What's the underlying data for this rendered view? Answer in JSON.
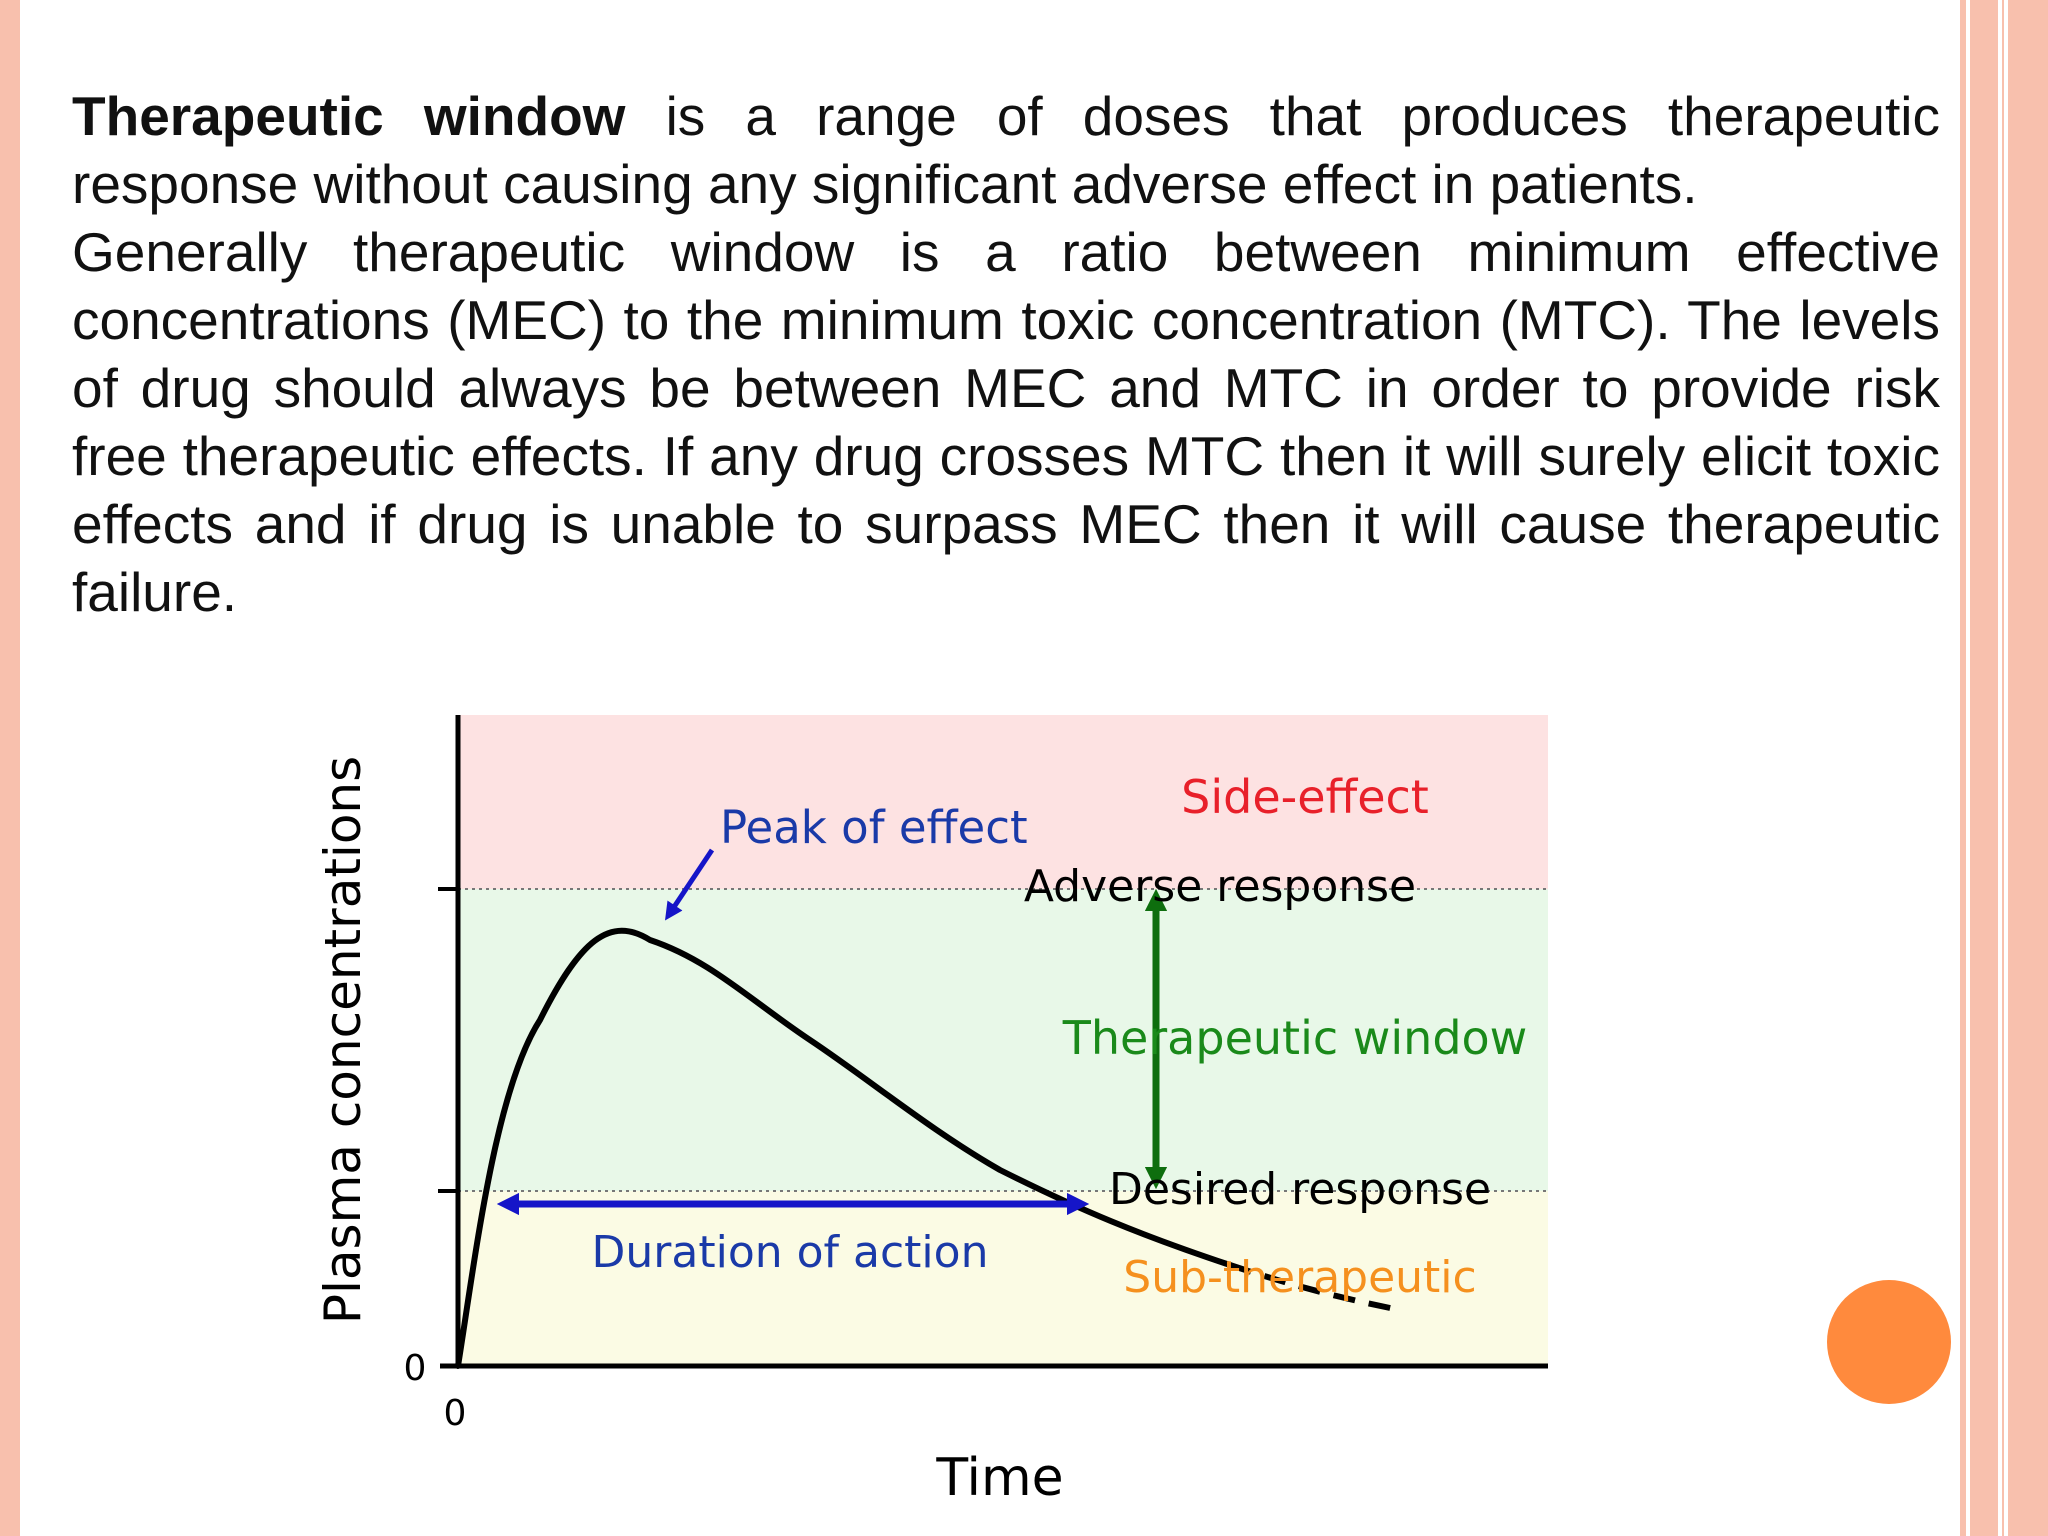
{
  "paragraph1": {
    "term": "Therapeutic window",
    "rest": " is a range of doses that produces therapeutic response without causing any significant adverse effect in patients."
  },
  "paragraph2": "Generally therapeutic window is a ratio between minimum effective concentrations (MEC) to the minimum toxic concentration (MTC). The levels of drug should always be between MEC and MTC in order to provide risk free therapeutic effects. If any drug crosses MTC then it will surely elicit toxic effects and if drug is unable to surpass MEC then it will cause therapeutic failure.",
  "diagram": {
    "y_axis_label": "Plasma concentrations",
    "x_axis_label": "Time",
    "y_origin_label": "0",
    "x_origin_label": "0",
    "labels": {
      "peak": "Peak of effect",
      "side_effect": "Side-effect",
      "adverse": "Adverse response",
      "therapeutic_window": "Therapeutic window",
      "desired": "Desired response",
      "duration": "Duration of action",
      "sub_therapeutic": "Sub-therapeutic"
    },
    "colors": {
      "toxic_zone": "#fde2e2",
      "therapeutic_zone": "#e8f8e8",
      "sub_zone": "#fbfbe4",
      "side_effect_text": "#e8202a",
      "therapeutic_text": "#1a8a1a",
      "window_arrow": "#0e6e0e",
      "duration_arrow": "#1515c8",
      "blue_text": "#1a3aa8",
      "sub_text": "#f5901e",
      "accent_orange": "#ff8a3d",
      "slide_border": "#f8c0ad"
    }
  }
}
